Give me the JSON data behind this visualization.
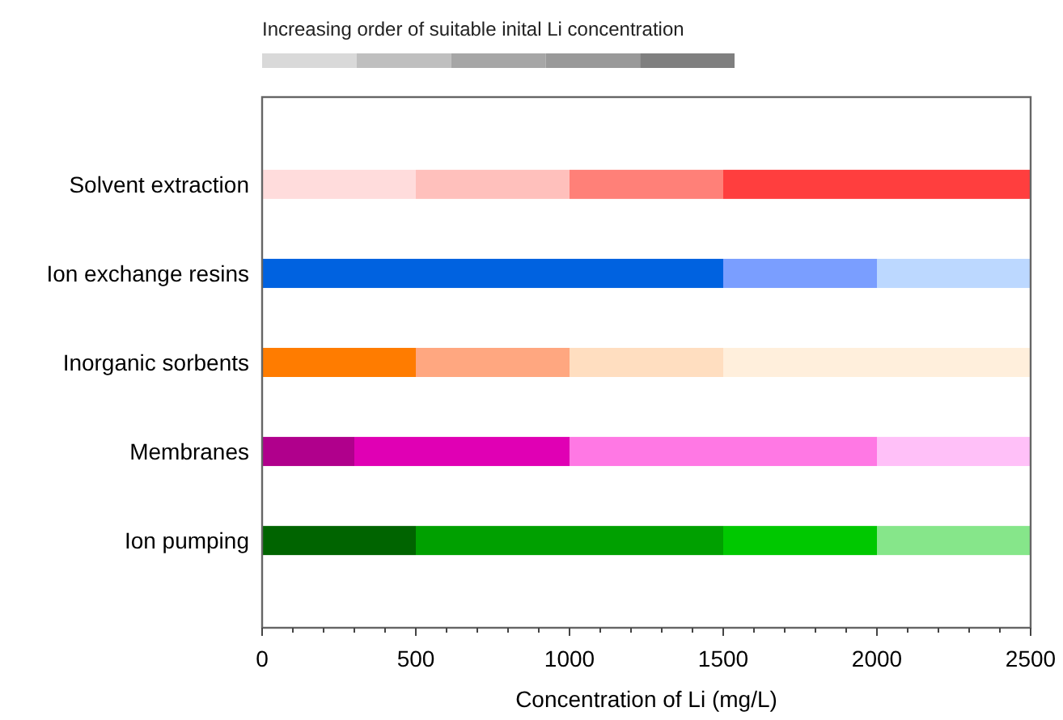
{
  "chart_data": {
    "type": "bar",
    "orientation": "horizontal",
    "stacked": true,
    "categories": [
      "Solvent extraction",
      "Ion exchange resins",
      "Inorganic sorbents",
      "Membranes",
      "Ion pumping"
    ],
    "series": [
      {
        "colors": [
          "#ffdcdc",
          "#0062e0",
          "#ff7c00",
          "#b0008c",
          "#006400"
        ],
        "values": [
          500,
          1500,
          500,
          300,
          500
        ]
      },
      {
        "colors": [
          "#ffc0bc",
          "#7a9eff",
          "#ffa780",
          "#e000b4",
          "#00a000"
        ],
        "values": [
          500,
          500,
          500,
          700,
          1000
        ]
      },
      {
        "colors": [
          "#ff8078",
          "#bcd8ff",
          "#ffdec0",
          "#ff78e4",
          "#00c800"
        ],
        "values": [
          500,
          500,
          500,
          1000,
          500
        ]
      },
      {
        "colors": [
          "#ff3e3e",
          null,
          "#ffefdc",
          "#ffc0f8",
          "#86e68a"
        ],
        "values": [
          1000,
          null,
          1000,
          500,
          500
        ]
      }
    ],
    "xlim": [
      0,
      2500
    ],
    "xticks": [
      0,
      {
        "value": 100,
        "label": null
      },
      {
        "value": 200,
        "label": null
      },
      {
        "value": 300,
        "label": null
      },
      {
        "value": 400,
        "label": null
      },
      500,
      {
        "value": 600,
        "label": null
      },
      {
        "value": 700,
        "label": null
      },
      {
        "value": 800,
        "label": null
      },
      {
        "value": 900,
        "label": null
      },
      1000,
      {
        "value": 1100,
        "label": null
      },
      {
        "value": 1200,
        "label": null
      },
      {
        "value": 1300,
        "label": null
      },
      {
        "value": 1400,
        "label": null
      },
      1500,
      {
        "value": 1600,
        "label": null
      },
      {
        "value": 1700,
        "label": null
      },
      {
        "value": 1800,
        "label": null
      },
      {
        "value": 1900,
        "label": null
      },
      2000,
      {
        "value": 2100,
        "label": null
      },
      {
        "value": 2200,
        "label": null
      },
      {
        "value": 2300,
        "label": null
      },
      {
        "value": 2400,
        "label": null
      },
      2500
    ],
    "xlabel": "Concentration of Li (mg/L)",
    "annotations": [
      "Increasing order of suitable inital Li concentration"
    ],
    "grid": false
  }
}
